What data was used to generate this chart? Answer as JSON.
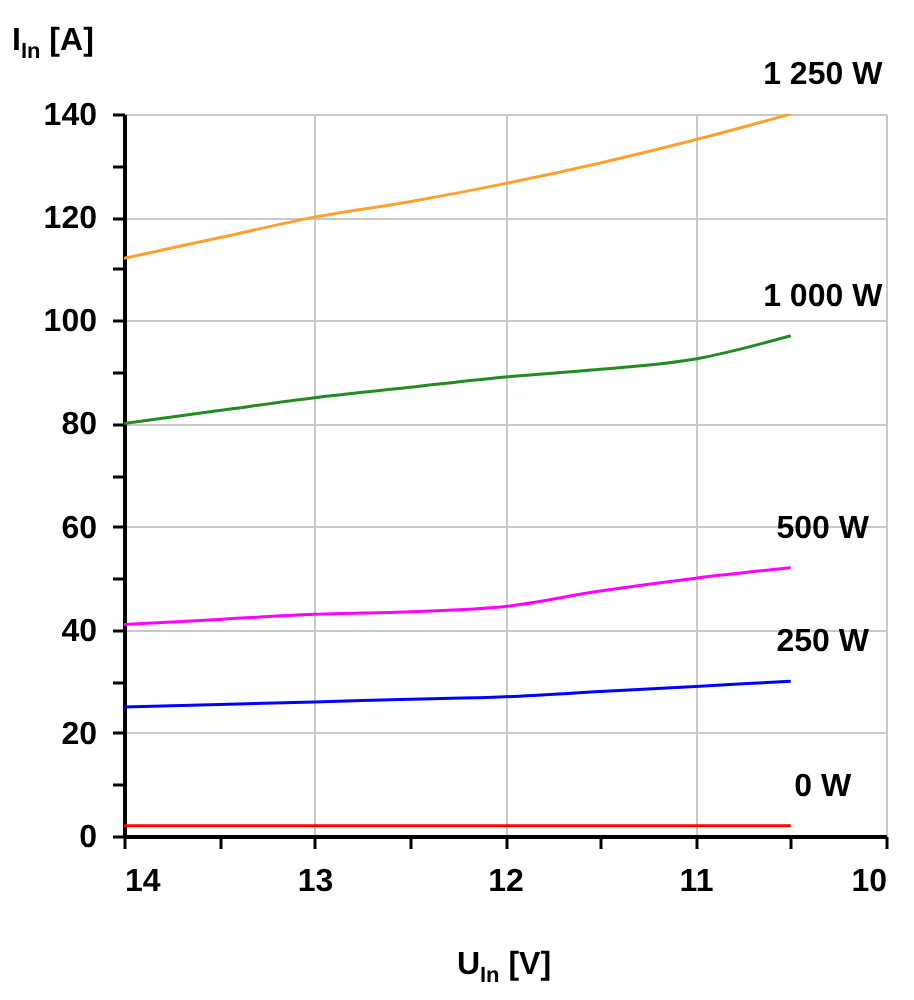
{
  "chart_data": {
    "type": "line",
    "xlabel": "U$_{In}$ [V]",
    "ylabel": "I$_{In}$ [A]",
    "x": [
      14,
      13.5,
      13,
      12.5,
      12,
      11.5,
      11,
      10.5
    ],
    "series": [
      {
        "name": "1 250 W",
        "color": "#ffa033",
        "values": [
          112,
          116,
          120,
          123,
          126.5,
          130.5,
          135,
          140
        ]
      },
      {
        "name": "1 000 W",
        "color": "#228b22",
        "values": [
          80,
          82.5,
          85,
          87,
          89,
          90.5,
          92.5,
          97
        ]
      },
      {
        "name": "500 W",
        "color": "#ff00ff",
        "values": [
          41,
          42,
          43,
          43.5,
          44.5,
          47.5,
          50,
          52
        ]
      },
      {
        "name": "250 W",
        "color": "#0000ff",
        "values": [
          25,
          25.5,
          26,
          26.5,
          27,
          28,
          29,
          30
        ]
      },
      {
        "name": "0 W",
        "color": "#ff0000",
        "values": [
          2,
          2,
          2,
          2,
          2,
          2,
          2,
          2
        ]
      }
    ],
    "xlim": [
      14,
      10
    ],
    "xticks": [
      14,
      {
        "value": 13.5,
        "label": null
      },
      13,
      {
        "value": 12.5,
        "label": null
      },
      12,
      {
        "value": 11.5,
        "label": null
      },
      11,
      {
        "value": 10.5,
        "label": null
      },
      10
    ],
    "ylim": [
      0,
      140
    ],
    "yticks": [
      0,
      {
        "value": 10,
        "label": null
      },
      20,
      {
        "value": 30,
        "label": null
      },
      40,
      {
        "value": 50,
        "label": null
      },
      60,
      {
        "value": 70,
        "label": null
      },
      80,
      {
        "value": 90,
        "label": null
      },
      100,
      {
        "value": 110,
        "label": null
      },
      120,
      {
        "value": 130,
        "label": null
      },
      140
    ],
    "grid": true,
    "legend": false,
    "marker": "none",
    "line_style": "solid"
  }
}
